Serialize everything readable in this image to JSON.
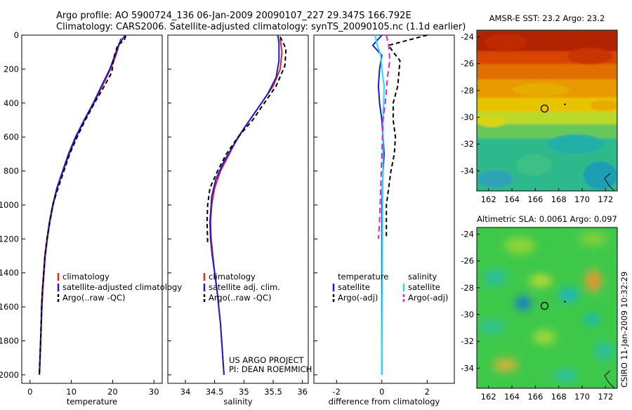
{
  "header": {
    "line1": "Argo profile: AO 5900724_136 06-Jan-2009 20090107_227 29.347S 166.792E",
    "line2": "Climatology: CARS2006. Satellite-adjusted climatology: synTS_20090105.nc (1.1d earlier)"
  },
  "side_text": "CSIRO 11-Jan-2009 10:32:29",
  "credit": {
    "line1": "US ARGO PROJECT",
    "line2": "PI: DEAN ROEMMICH"
  },
  "colors": {
    "climatology": "#ee2222",
    "satellite": "#1a1adc",
    "argo": "#000000",
    "cyan": "#22e0ee",
    "magenta": "#e020d0"
  },
  "chart_data": [
    {
      "type": "line",
      "xlabel": "temperature",
      "xlim": [
        -2,
        32
      ],
      "ylim": [
        0,
        2050
      ],
      "y_inverted": true,
      "xticks": [
        0,
        10,
        20,
        30
      ],
      "yticks": [
        0,
        200,
        400,
        600,
        800,
        1000,
        1200,
        1400,
        1600,
        1800,
        2000
      ],
      "legend": {
        "position": "lower-center",
        "items": [
          "climatology",
          "satellite-adjusted climatology",
          "Argo(..raw -QC)"
        ]
      },
      "series": [
        {
          "name": "climatology",
          "color": "#ee2222",
          "dash": "",
          "points": [
            [
              22.0,
              20
            ],
            [
              21.5,
              60
            ],
            [
              20.8,
              120
            ],
            [
              19.5,
              200
            ],
            [
              17.5,
              300
            ],
            [
              15.5,
              400
            ],
            [
              13.2,
              500
            ],
            [
              11.2,
              600
            ],
            [
              9.5,
              700
            ],
            [
              8.0,
              800
            ],
            [
              6.6,
              900
            ],
            [
              5.6,
              1000
            ],
            [
              4.8,
              1100
            ],
            [
              4.2,
              1200
            ],
            [
              3.7,
              1300
            ],
            [
              3.4,
              1400
            ],
            [
              3.1,
              1500
            ],
            [
              2.9,
              1600
            ],
            [
              2.75,
              1700
            ],
            [
              2.6,
              1800
            ],
            [
              2.45,
              1900
            ],
            [
              2.3,
              2000
            ]
          ]
        },
        {
          "name": "satellite-adjusted climatology",
          "color": "#1a1adc",
          "dash": "",
          "points": [
            [
              23.0,
              0
            ],
            [
              22.5,
              20
            ],
            [
              21.6,
              50
            ],
            [
              20.7,
              110
            ],
            [
              19.3,
              200
            ],
            [
              17.3,
              300
            ],
            [
              15.3,
              400
            ],
            [
              13.1,
              500
            ],
            [
              11.0,
              600
            ],
            [
              9.3,
              700
            ],
            [
              7.9,
              800
            ],
            [
              6.5,
              900
            ],
            [
              5.5,
              1000
            ],
            [
              4.7,
              1100
            ],
            [
              4.1,
              1200
            ],
            [
              3.6,
              1300
            ],
            [
              3.3,
              1400
            ],
            [
              3.0,
              1500
            ],
            [
              2.8,
              1600
            ],
            [
              2.7,
              1700
            ],
            [
              2.55,
              1800
            ],
            [
              2.4,
              1900
            ],
            [
              2.25,
              2000
            ]
          ]
        },
        {
          "name": "Argo(..raw -QC)",
          "color": "#000000",
          "dash": "6,4",
          "points": [
            [
              23.2,
              5
            ],
            [
              22.8,
              30
            ],
            [
              21.2,
              60
            ],
            [
              20.3,
              130
            ],
            [
              19.8,
              220
            ],
            [
              18.0,
              300
            ],
            [
              15.6,
              400
            ],
            [
              13.4,
              500
            ],
            [
              11.4,
              600
            ],
            [
              9.6,
              700
            ],
            [
              8.2,
              800
            ],
            [
              6.8,
              900
            ],
            [
              5.5,
              1000
            ],
            [
              4.8,
              1100
            ],
            [
              4.1,
              1200
            ],
            [
              3.6,
              1300
            ],
            [
              3.3,
              1400
            ],
            [
              3.0,
              1500
            ],
            [
              2.8,
              1600
            ],
            [
              2.7,
              1700
            ],
            [
              2.55,
              1800
            ],
            [
              2.4,
              1900
            ],
            [
              2.25,
              2000
            ]
          ]
        }
      ]
    },
    {
      "type": "line",
      "xlabel": "salinity",
      "xlim": [
        33.7,
        36.1
      ],
      "ylim": [
        0,
        2050
      ],
      "y_inverted": true,
      "xticks": [
        34,
        34.5,
        35,
        35.5,
        36
      ],
      "legend": {
        "position": "lower-center",
        "items": [
          "climatology",
          "satellite adj. clim.",
          "Argo(..raw -QC)"
        ]
      },
      "series": [
        {
          "name": "climatology",
          "color": "#ee2222",
          "dash": "",
          "points": [
            [
              35.62,
              20
            ],
            [
              35.65,
              100
            ],
            [
              35.62,
              200
            ],
            [
              35.5,
              300
            ],
            [
              35.3,
              400
            ],
            [
              35.1,
              500
            ],
            [
              34.9,
              600
            ],
            [
              34.75,
              700
            ],
            [
              34.6,
              800
            ],
            [
              34.5,
              900
            ],
            [
              34.45,
              1000
            ],
            [
              34.43,
              1100
            ],
            [
              34.44,
              1200
            ],
            [
              34.47,
              1300
            ],
            [
              34.5,
              1400
            ],
            [
              34.54,
              1500
            ],
            [
              34.57,
              1600
            ],
            [
              34.6,
              1700
            ],
            [
              34.62,
              1800
            ],
            [
              34.64,
              1900
            ],
            [
              34.66,
              2000
            ]
          ]
        },
        {
          "name": "satellite adj. clim.",
          "color": "#1a1adc",
          "dash": "",
          "points": [
            [
              35.58,
              0
            ],
            [
              35.6,
              50
            ],
            [
              35.6,
              150
            ],
            [
              35.55,
              250
            ],
            [
              35.4,
              350
            ],
            [
              35.2,
              450
            ],
            [
              35.0,
              550
            ],
            [
              34.82,
              650
            ],
            [
              34.65,
              750
            ],
            [
              34.52,
              850
            ],
            [
              34.45,
              950
            ],
            [
              34.42,
              1100
            ],
            [
              34.43,
              1200
            ],
            [
              34.46,
              1300
            ],
            [
              34.5,
              1400
            ],
            [
              34.54,
              1500
            ],
            [
              34.57,
              1600
            ],
            [
              34.6,
              1700
            ],
            [
              34.62,
              1800
            ],
            [
              34.64,
              1900
            ],
            [
              34.66,
              2000
            ]
          ]
        },
        {
          "name": "Argo(..raw -QC)",
          "color": "#000000",
          "dash": "6,4",
          "points": [
            [
              35.62,
              10
            ],
            [
              35.72,
              80
            ],
            [
              35.7,
              180
            ],
            [
              35.55,
              300
            ],
            [
              35.35,
              400
            ],
            [
              35.15,
              500
            ],
            [
              34.9,
              600
            ],
            [
              34.7,
              700
            ],
            [
              34.55,
              800
            ],
            [
              34.42,
              900
            ],
            [
              34.38,
              1000
            ],
            [
              34.37,
              1100
            ],
            [
              34.38,
              1220
            ]
          ]
        }
      ]
    },
    {
      "type": "line",
      "xlabel": "difference from climatology",
      "xlim": [
        -3.0,
        3.2
      ],
      "ylim": [
        0,
        2050
      ],
      "y_inverted": true,
      "xticks": [
        -2,
        0,
        2
      ],
      "legend": {
        "position": "lower-center",
        "groups": [
          {
            "title": "temperature",
            "items": [
              "satellite",
              "Argo(-adj)"
            ]
          },
          {
            "title": "salinity",
            "items": [
              "satellite",
              "Argo(-adj)"
            ]
          }
        ]
      },
      "series": [
        {
          "name": "temperature satellite",
          "color": "#1a1adc",
          "dash": "",
          "points": [
            [
              0.0,
              0
            ],
            [
              -0.4,
              60
            ],
            [
              0.0,
              120
            ],
            [
              -0.1,
              200
            ],
            [
              -0.15,
              300
            ],
            [
              -0.1,
              400
            ],
            [
              0.0,
              500
            ],
            [
              0.05,
              600
            ],
            [
              0.1,
              700
            ],
            [
              0.05,
              800
            ],
            [
              0.0,
              1000
            ],
            [
              0.0,
              1500
            ],
            [
              0.0,
              2000
            ]
          ]
        },
        {
          "name": "temperature Argo(-adj)",
          "color": "#000000",
          "dash": "6,4",
          "points": [
            [
              2.0,
              0
            ],
            [
              0.3,
              60
            ],
            [
              0.5,
              100
            ],
            [
              0.8,
              150
            ],
            [
              0.7,
              300
            ],
            [
              0.5,
              400
            ],
            [
              0.5,
              500
            ],
            [
              0.6,
              600
            ],
            [
              0.55,
              700
            ],
            [
              0.4,
              800
            ],
            [
              0.3,
              900
            ],
            [
              0.2,
              1000
            ],
            [
              0.2,
              1100
            ],
            [
              0.2,
              1200
            ]
          ]
        },
        {
          "name": "salinity satellite",
          "color": "#22e0ee",
          "dash": "",
          "points": [
            [
              -0.3,
              0
            ],
            [
              -0.2,
              60
            ],
            [
              -0.05,
              120
            ],
            [
              0.0,
              200
            ],
            [
              0.1,
              300
            ],
            [
              0.08,
              400
            ],
            [
              0.05,
              500
            ],
            [
              0.05,
              700
            ],
            [
              0.03,
              1000
            ],
            [
              0.02,
              1500
            ],
            [
              0.0,
              2000
            ]
          ]
        },
        {
          "name": "salinity Argo(-adj)",
          "color": "#e020d0",
          "dash": "8,5",
          "points": [
            [
              0.2,
              0
            ],
            [
              0.3,
              60
            ],
            [
              0.35,
              150
            ],
            [
              0.25,
              250
            ],
            [
              0.15,
              400
            ],
            [
              0.05,
              500
            ],
            [
              0.0,
              700
            ],
            [
              -0.05,
              900
            ],
            [
              -0.1,
              1100
            ],
            [
              -0.15,
              1200
            ]
          ]
        }
      ]
    },
    {
      "type": "heatmap",
      "title": "AMSR-E SST: 23.2  Argo: 23.2",
      "xlim": [
        161,
        173
      ],
      "ylim": [
        -35.5,
        -23.5
      ],
      "xticks": [
        162,
        164,
        166,
        168,
        170,
        172
      ],
      "yticks": [
        -24,
        -26,
        -28,
        -30,
        -32,
        -34
      ],
      "marker": {
        "lon": 166.79,
        "lat": -29.35
      }
    },
    {
      "type": "heatmap",
      "title": "Altimetric SLA: 0.0061  Argo: 0.097",
      "xlim": [
        161,
        173
      ],
      "ylim": [
        -35.5,
        -23.5
      ],
      "xticks": [
        162,
        164,
        166,
        168,
        170,
        172
      ],
      "yticks": [
        -24,
        -26,
        -28,
        -30,
        -32,
        -34
      ],
      "marker": {
        "lon": 166.79,
        "lat": -29.35
      }
    }
  ]
}
